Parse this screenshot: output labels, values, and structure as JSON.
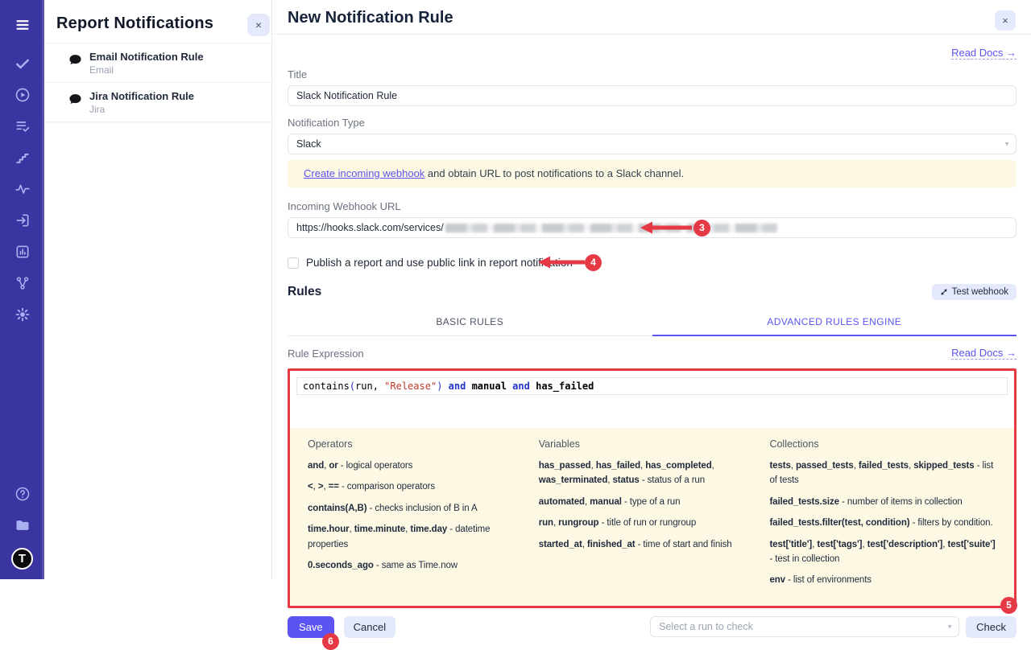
{
  "colors": {
    "accent": "#5b54f2",
    "sidebar_bg": "#3a35a0",
    "annotation_red": "#e63946",
    "info_bg": "#fdf8e3",
    "code_keyword": "#2733c9",
    "code_string": "#c0392b"
  },
  "sidebar": {
    "icons": [
      "menu",
      "check",
      "play-circle",
      "list-check",
      "steps",
      "activity",
      "sign-in",
      "bar-chart",
      "git-branch",
      "settings",
      "help-circle",
      "projects",
      "avatar"
    ],
    "avatar_letter": "T"
  },
  "left_panel": {
    "title": "Report Notifications",
    "close_label": "×",
    "items": [
      {
        "title": "Email Notification Rule",
        "subtitle": "Email"
      },
      {
        "title": "Jira Notification Rule",
        "subtitle": "Jira"
      }
    ]
  },
  "main": {
    "title": "New Notification Rule",
    "close_label": "×",
    "read_docs": "Read Docs →",
    "form": {
      "title_label": "Title",
      "title_value": "Slack Notification Rule",
      "type_label": "Notification Type",
      "type_value": "Slack",
      "info_link_text": "Create incoming webhook",
      "info_rest_text": " and obtain URL to post notifications to a Slack channel.",
      "webhook_label": "Incoming Webhook URL",
      "webhook_value_prefix": "https://hooks.slack.com/services/",
      "publish_checkbox_label": "Publish a report and use public link in report notification"
    },
    "rules": {
      "heading": "Rules",
      "test_webhook_label": "Test webhook",
      "tabs": [
        {
          "label": "BASIC RULES",
          "active": false
        },
        {
          "label": "ADVANCED RULES ENGINE",
          "active": true
        }
      ],
      "expression_label": "Rule Expression",
      "read_docs": "Read Docs →",
      "code_tokens": [
        {
          "t": "contains",
          "c": "plain"
        },
        {
          "t": "(",
          "c": "paren"
        },
        {
          "t": "run, ",
          "c": "plain"
        },
        {
          "t": "\"Release\"",
          "c": "string"
        },
        {
          "t": ")",
          "c": "paren"
        },
        {
          "t": " ",
          "c": "plain"
        },
        {
          "t": "and",
          "c": "keyword"
        },
        {
          "t": " ",
          "c": "plain"
        },
        {
          "t": "manual",
          "c": "ident"
        },
        {
          "t": " ",
          "c": "plain"
        },
        {
          "t": "and",
          "c": "keyword"
        },
        {
          "t": " ",
          "c": "plain"
        },
        {
          "t": "has_failed",
          "c": "ident"
        }
      ],
      "help_columns": [
        {
          "title": "Operators",
          "items": [
            "**and**, **or** - logical operators",
            "**<**, **>**, **==** - comparison operators",
            "**contains(A,B)** - checks inclusion of B in A",
            "**time.hour**, **time.minute**, **time.day** - datetime properties",
            "**0.seconds_ago** - same as Time.now"
          ]
        },
        {
          "title": "Variables",
          "items": [
            "**has_passed**, **has_failed**, **has_completed**, **was_terminated**, **status** - status of a run",
            "**automated**, **manual** - type of a run",
            "**run**, **rungroup** - title of run or rungroup",
            "**started_at**, **finished_at** - time of start and finish"
          ]
        },
        {
          "title": "Collections",
          "items": [
            "**tests**, **passed_tests**, **failed_tests**, **skipped_tests** - list of tests",
            "**failed_tests.size** - number of items in collection",
            "**failed_tests.filter(test, condition)** - filters by condition.",
            "**test['title']**, **test['tags']**, **test['description']**, **test['suite']** - test in collection",
            "**env** - list of environments"
          ]
        }
      ]
    },
    "footer": {
      "save_label": "Save",
      "cancel_label": "Cancel",
      "run_select_placeholder": "Select a run to check",
      "check_label": "Check"
    },
    "annotations": {
      "badge3": "3",
      "badge4": "4",
      "badge5": "5",
      "badge6": "6"
    }
  }
}
